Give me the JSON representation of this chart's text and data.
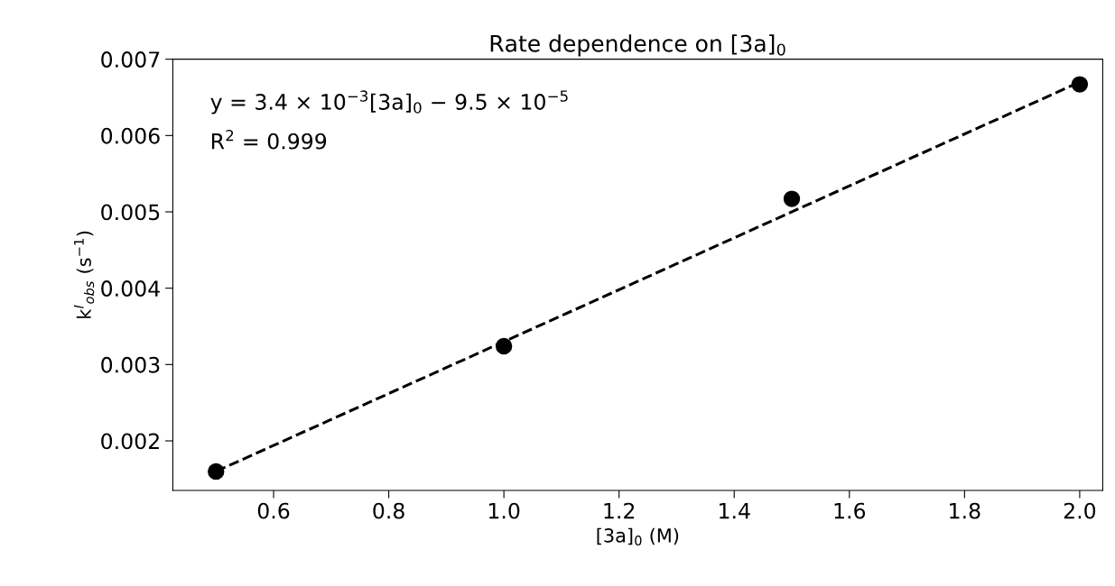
{
  "chart_data": {
    "type": "scatter",
    "title": "Rate dependence on [3a]$_{0}$",
    "xlabel": "[3a]$_{0}$ (M)",
    "ylabel": "k$^{I}$$_{obs}$ (s$^{−1}$)",
    "annotations": [
      "y = 3.4 × 10$^{−3}$[3a]$_{0}$ − 9.5 × 10$^{−5}$",
      "R$^{2}$ = 0.999"
    ],
    "series": [
      {
        "color": "#000000",
        "marker": "circle",
        "x": [
          0.5,
          1.0,
          1.5,
          2.0
        ],
        "values": [
          0.0016,
          0.00324,
          0.00517,
          0.00667
        ]
      },
      {
        "type": "line",
        "color": "#000000",
        "line_style": "dashed",
        "x": [
          0.5,
          2.0
        ],
        "values": [
          0.0016,
          0.0067
        ]
      }
    ],
    "xlim": [
      0.425,
      2.04
    ],
    "ylim": [
      0.00135,
      0.007
    ],
    "xticks": [
      0.6,
      0.8,
      {
        "value": 1.0,
        "label": "1.0"
      },
      1.2,
      1.4,
      1.6,
      1.8,
      {
        "value": 2.0,
        "label": "2.0"
      }
    ],
    "yticks": [
      0.002,
      0.003,
      0.004,
      0.005,
      0.006,
      0.007
    ],
    "grid": false,
    "legend": false
  }
}
